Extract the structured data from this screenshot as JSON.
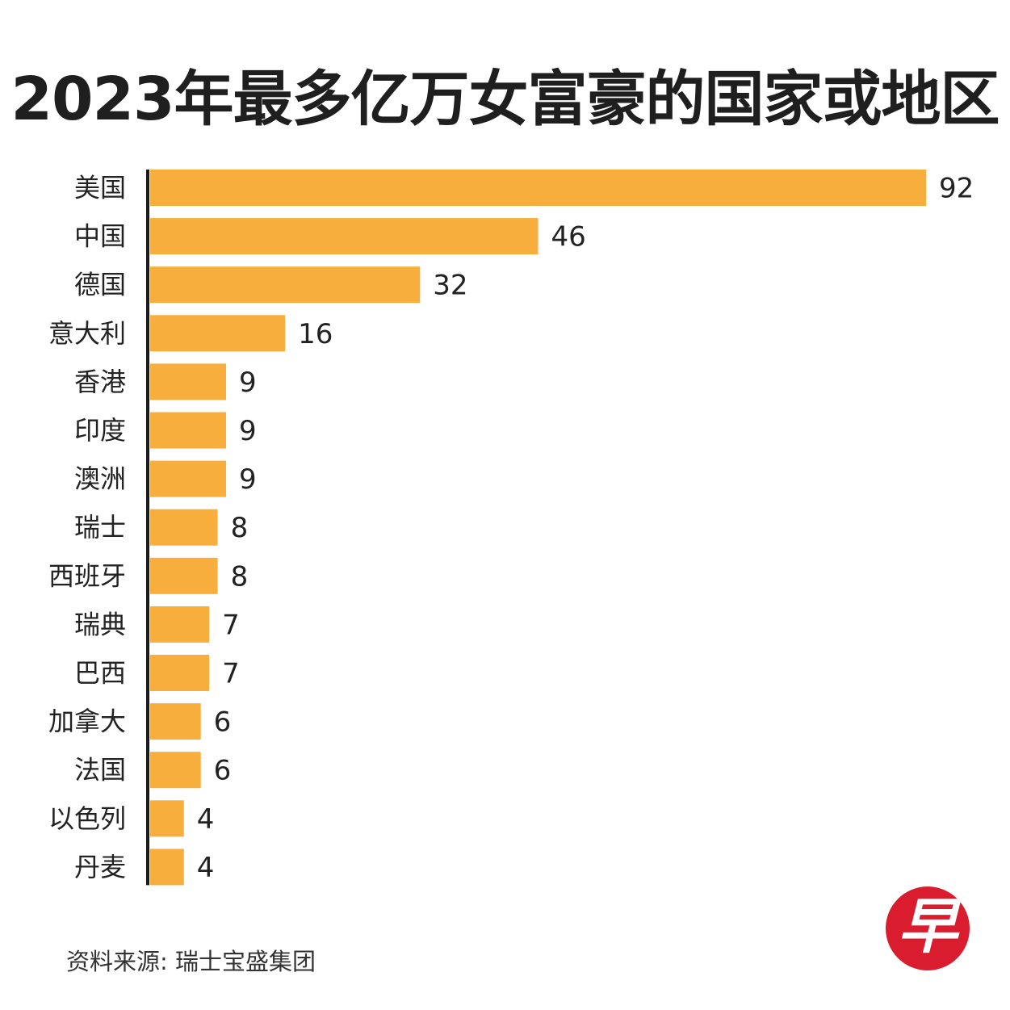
{
  "chart_data": {
    "type": "bar",
    "orientation": "horizontal",
    "title": "2023年最多亿万女富豪的国家或地区",
    "categories": [
      "美国",
      "中国",
      "德国",
      "意大利",
      "香港",
      "印度",
      "澳洲",
      "瑞士",
      "西班牙",
      "瑞典",
      "巴西",
      "加拿大",
      "法国",
      "以色列",
      "丹麦"
    ],
    "values": [
      92,
      46,
      32,
      16,
      9,
      9,
      9,
      8,
      8,
      7,
      7,
      6,
      6,
      4,
      4
    ],
    "xlabel": "",
    "ylabel": "",
    "xlim": [
      0,
      92
    ],
    "grid": false,
    "bar_color": "#f7ae3c",
    "axis_color": "#1a1a1a"
  },
  "source": "资料来源: 瑞士宝盛集团",
  "logo": {
    "text": "早",
    "color": "#d91c2e"
  }
}
